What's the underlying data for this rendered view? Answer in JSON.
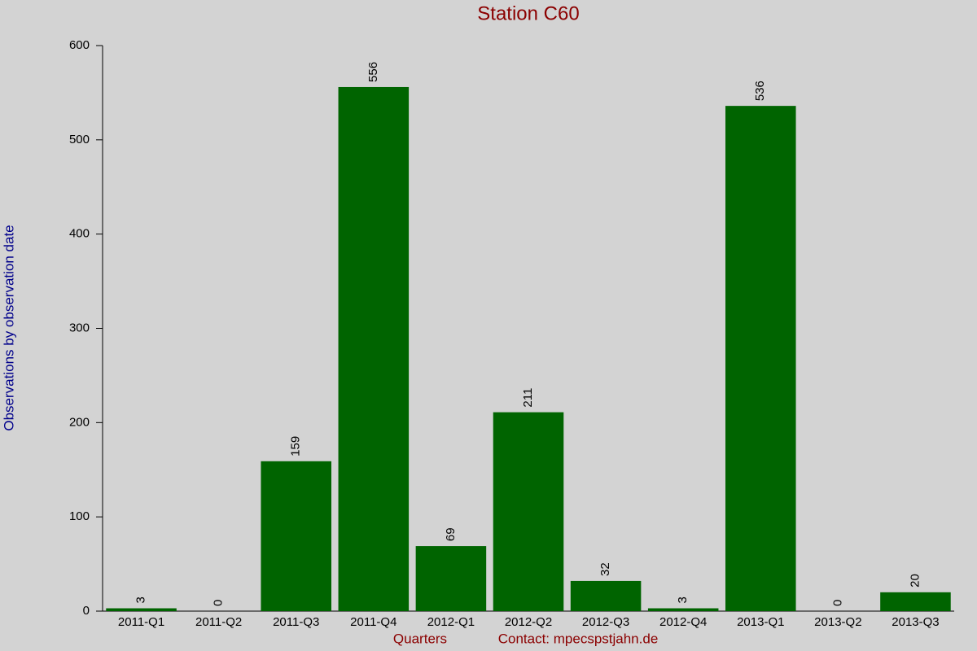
{
  "chart_data": {
    "type": "bar",
    "title": "Station C60",
    "x_label": "Quarters",
    "contact": "Contact: mpecspstjahn.de",
    "y_label": "Observations by observation date",
    "categories": [
      "2011-Q1",
      "2011-Q2",
      "2011-Q3",
      "2011-Q4",
      "2012-Q1",
      "2012-Q2",
      "2012-Q3",
      "2012-Q4",
      "2013-Q1",
      "2013-Q2",
      "2013-Q3"
    ],
    "values": [
      3,
      0,
      159,
      556,
      69,
      211,
      32,
      3,
      536,
      0,
      20
    ],
    "color": "#006400",
    "ylim": [
      0,
      600
    ],
    "yticks": [
      0,
      100,
      200,
      300,
      400,
      500,
      600
    ],
    "grid": false
  }
}
